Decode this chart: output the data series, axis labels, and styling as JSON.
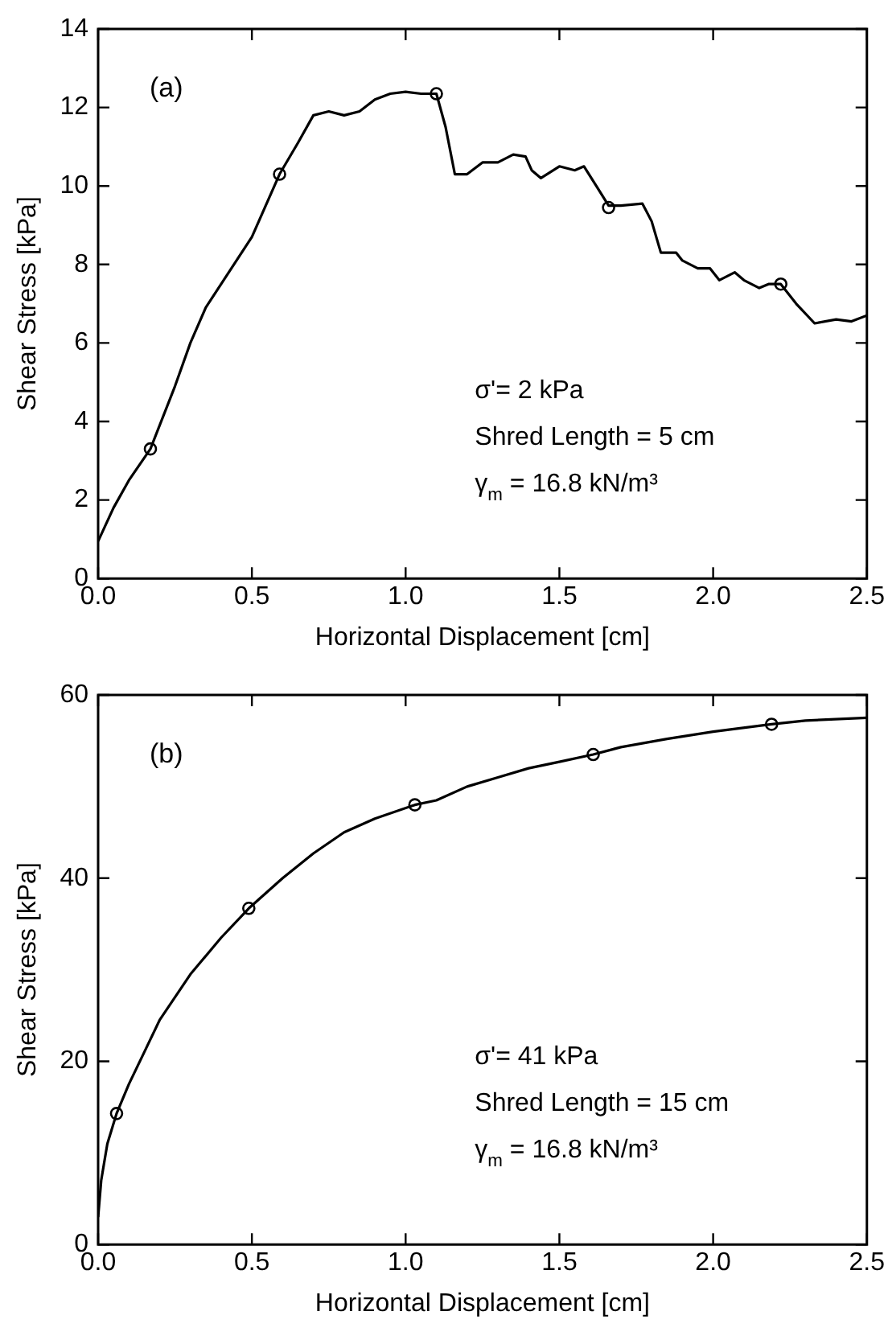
{
  "chart_data": [
    {
      "type": "line",
      "xlabel": "Horizontal Displacement [cm]",
      "ylabel": "Shear Stress [kPa]",
      "annotations": [
        "(a)",
        "σ'= 2 kPa",
        "Shred Length = 5 cm",
        "γ$_{m}$ = 16.8 kN/m³"
      ],
      "xlim": [
        0,
        2.5
      ],
      "ylim": [
        0,
        14
      ],
      "xticks": [
        {
          "value": 0,
          "label": "0.0"
        },
        {
          "value": 0.5,
          "label": "0.5"
        },
        {
          "value": 1,
          "label": "1.0"
        },
        {
          "value": 1.5,
          "label": "1.5"
        },
        {
          "value": 2,
          "label": "2.0"
        },
        {
          "value": 2.5,
          "label": "2.5"
        }
      ],
      "yticks": [
        0,
        2,
        4,
        6,
        8,
        10,
        12,
        14
      ],
      "grid": false,
      "legend": false,
      "series": [
        {
          "type": "line",
          "color": "#000000",
          "marker": "none",
          "line_style": "solid",
          "x": [
            0,
            0.05,
            0.1,
            0.17,
            0.25,
            0.3,
            0.35,
            0.4,
            0.5,
            0.59,
            0.65,
            0.7,
            0.75,
            0.8,
            0.85,
            0.9,
            0.95,
            1.0,
            1.05,
            1.1,
            1.13,
            1.16,
            1.2,
            1.25,
            1.3,
            1.35,
            1.39,
            1.41,
            1.44,
            1.5,
            1.55,
            1.58,
            1.62,
            1.66,
            1.7,
            1.77,
            1.8,
            1.83,
            1.88,
            1.9,
            1.95,
            1.99,
            2.02,
            2.07,
            2.1,
            2.15,
            2.18,
            2.22,
            2.27,
            2.33,
            2.4,
            2.45,
            2.5
          ],
          "values": [
            0.95,
            1.8,
            2.5,
            3.3,
            4.9,
            6.0,
            6.9,
            7.5,
            8.7,
            10.3,
            11.1,
            11.8,
            11.9,
            11.8,
            11.9,
            12.2,
            12.35,
            12.4,
            12.35,
            12.35,
            11.5,
            10.3,
            10.3,
            10.6,
            10.6,
            10.8,
            10.75,
            10.4,
            10.2,
            10.5,
            10.4,
            10.5,
            10.0,
            9.5,
            9.5,
            9.55,
            9.1,
            8.3,
            8.3,
            8.1,
            7.9,
            7.9,
            7.6,
            7.8,
            7.6,
            7.4,
            7.5,
            7.5,
            7.0,
            6.5,
            6.6,
            6.55,
            6.7
          ]
        },
        {
          "type": "scatter",
          "color": "#000000",
          "marker": "circle",
          "x": [
            0.17,
            0.59,
            1.1,
            1.66,
            2.22
          ],
          "values": [
            3.3,
            10.3,
            12.35,
            9.45,
            7.5
          ]
        }
      ]
    },
    {
      "type": "line",
      "xlabel": "Horizontal Displacement [cm]",
      "ylabel": "Shear Stress [kPa]",
      "annotations": [
        "(b)",
        "σ'= 41 kPa",
        "Shred Length = 15 cm",
        "γ$_{m}$ = 16.8 kN/m³"
      ],
      "xlim": [
        0,
        2.5
      ],
      "ylim": [
        0,
        60
      ],
      "xticks": [
        {
          "value": 0,
          "label": "0.0"
        },
        {
          "value": 0.5,
          "label": "0.5"
        },
        {
          "value": 1,
          "label": "1.0"
        },
        {
          "value": 1.5,
          "label": "1.5"
        },
        {
          "value": 2,
          "label": "2.0"
        },
        {
          "value": 2.5,
          "label": "2.5"
        }
      ],
      "yticks": [
        0,
        20,
        40,
        60
      ],
      "grid": false,
      "legend": false,
      "series": [
        {
          "type": "line",
          "color": "#000000",
          "marker": "none",
          "line_style": "solid",
          "x": [
            0,
            0.01,
            0.03,
            0.06,
            0.1,
            0.15,
            0.2,
            0.3,
            0.4,
            0.49,
            0.6,
            0.7,
            0.8,
            0.9,
            1.03,
            1.1,
            1.2,
            1.3,
            1.4,
            1.5,
            1.61,
            1.7,
            1.85,
            2.0,
            2.19,
            2.3,
            2.5
          ],
          "values": [
            3,
            7,
            11,
            14.3,
            17.5,
            21,
            24.5,
            29.5,
            33.5,
            36.7,
            40,
            42.7,
            45,
            46.5,
            48,
            48.5,
            50,
            51,
            52,
            52.7,
            53.5,
            54.3,
            55.2,
            56,
            56.8,
            57.2,
            57.5
          ]
        },
        {
          "type": "scatter",
          "color": "#000000",
          "marker": "circle",
          "x": [
            0.06,
            0.49,
            1.03,
            1.61,
            2.19
          ],
          "values": [
            14.3,
            36.7,
            48,
            53.5,
            56.8
          ]
        }
      ]
    }
  ]
}
